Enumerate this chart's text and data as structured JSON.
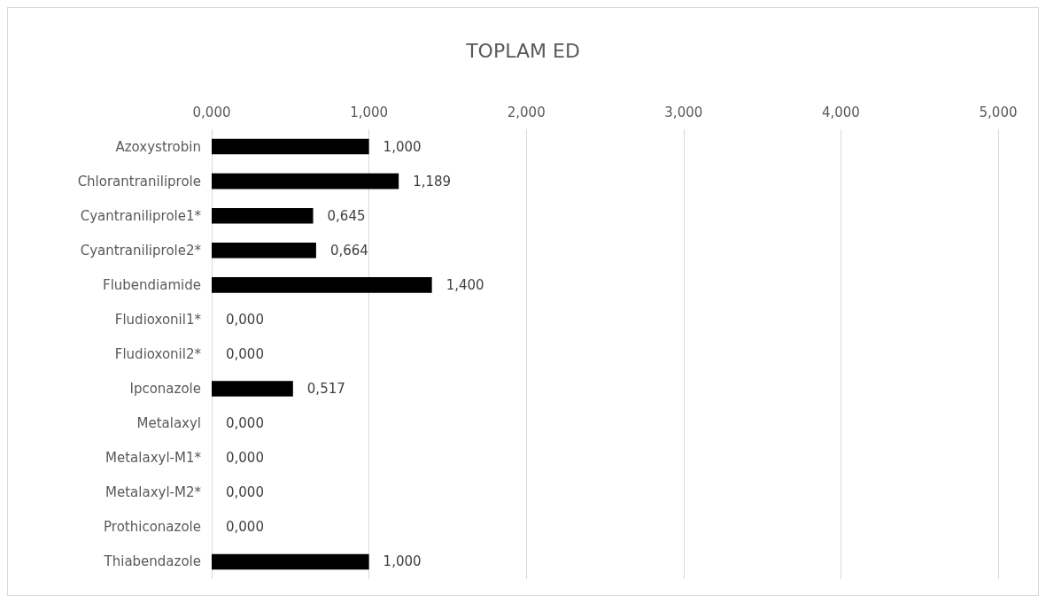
{
  "chart_data": {
    "type": "bar",
    "orientation": "horizontal",
    "title": "TOPLAM ED",
    "categories": [
      "Azoxystrobin",
      "Chlorantraniliprole",
      "Cyantraniliprole1*",
      "Cyantraniliprole2*",
      "Flubendiamide",
      "Fludioxonil1*",
      "Fludioxonil2*",
      "Ipconazole",
      "Metalaxyl",
      "Metalaxyl-M1*",
      "Metalaxyl-M2*",
      "Prothiconazole",
      "Thiabendazole"
    ],
    "values": [
      1.0,
      1.189,
      0.645,
      0.664,
      1.4,
      0,
      0,
      0.517,
      0,
      0,
      0,
      0,
      1.0
    ],
    "value_labels": [
      "1,000",
      "1,189",
      "0,645",
      "0,664",
      "1,400",
      "0,000",
      "0,000",
      "0,517",
      "0,000",
      "0,000",
      "0,000",
      "0,000",
      "1,000"
    ],
    "color": "#000000",
    "xlim": [
      0,
      5
    ],
    "xticks": [
      {
        "value": 0,
        "label": "0,000"
      },
      {
        "value": 1,
        "label": "1,000"
      },
      {
        "value": 2,
        "label": "2,000"
      },
      {
        "value": 3,
        "label": "3,000"
      },
      {
        "value": 4,
        "label": "4,000"
      },
      {
        "value": 5,
        "label": "5,000"
      }
    ],
    "grid": "x"
  }
}
